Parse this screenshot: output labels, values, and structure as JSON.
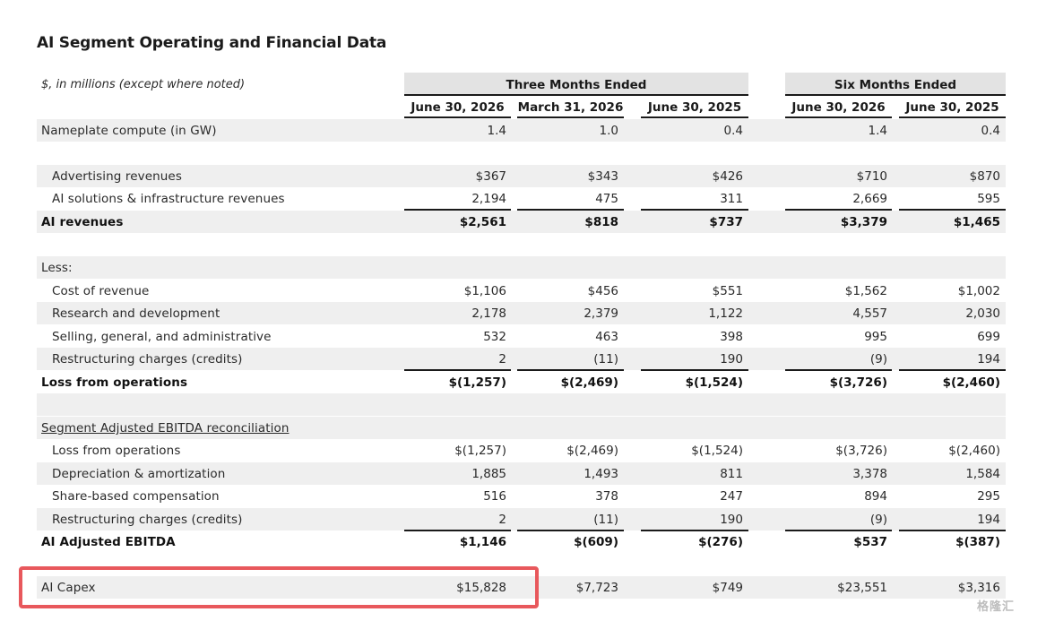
{
  "title": "AI Segment Operating and Financial Data",
  "units_note": "$, in millions (except where noted)",
  "header_groups": [
    "Three Months Ended",
    "Six Months Ended"
  ],
  "columns": [
    "June 30, 2026",
    "March 31, 2026",
    "June 30, 2025",
    "June 30, 2026",
    "June 30, 2025"
  ],
  "rows": [
    {
      "label": "Nameplate compute (in GW)",
      "values": [
        "1.4",
        "1.0",
        "0.4",
        "1.4",
        "0.4"
      ],
      "bold": false,
      "indent": false
    },
    {
      "label": "Advertising revenues",
      "values": [
        "$367",
        "$343",
        "$426",
        "$710",
        "$870"
      ],
      "bold": false,
      "indent": true
    },
    {
      "label": "AI solutions & infrastructure revenues",
      "values": [
        "2,194",
        "475",
        "311",
        "2,669",
        "595"
      ],
      "bold": false,
      "indent": true
    },
    {
      "label": "AI revenues",
      "values": [
        "$2,561",
        "$818",
        "$737",
        "$3,379",
        "$1,465"
      ],
      "bold": true,
      "indent": false
    },
    {
      "label": "Less:",
      "values": [
        "",
        "",
        "",
        "",
        ""
      ],
      "bold": false,
      "indent": false
    },
    {
      "label": "Cost of revenue",
      "values": [
        "$1,106",
        "$456",
        "$551",
        "$1,562",
        "$1,002"
      ],
      "bold": false,
      "indent": true
    },
    {
      "label": "Research and development",
      "values": [
        "2,178",
        "2,379",
        "1,122",
        "4,557",
        "2,030"
      ],
      "bold": false,
      "indent": true
    },
    {
      "label": "Selling, general, and administrative",
      "values": [
        "532",
        "463",
        "398",
        "995",
        "699"
      ],
      "bold": false,
      "indent": true
    },
    {
      "label": "Restructuring charges (credits)",
      "values": [
        "2",
        "(11)",
        "190",
        "(9)",
        "194"
      ],
      "bold": false,
      "indent": true
    },
    {
      "label": "Loss from operations",
      "values": [
        "$(1,257)",
        "$(2,469)",
        "$(1,524)",
        "$(3,726)",
        "$(2,460)"
      ],
      "bold": true,
      "indent": false
    },
    {
      "label": "Segment Adjusted EBITDA reconciliation",
      "values": [
        "",
        "",
        "",
        "",
        ""
      ],
      "bold": false,
      "indent": false,
      "underline": true
    },
    {
      "label": "Loss from operations",
      "values": [
        "$(1,257)",
        "$(2,469)",
        "$(1,524)",
        "$(3,726)",
        "$(2,460)"
      ],
      "bold": false,
      "indent": true
    },
    {
      "label": "Depreciation & amortization",
      "values": [
        "1,885",
        "1,493",
        "811",
        "3,378",
        "1,584"
      ],
      "bold": false,
      "indent": true
    },
    {
      "label": "Share-based compensation",
      "values": [
        "516",
        "378",
        "247",
        "894",
        "295"
      ],
      "bold": false,
      "indent": true
    },
    {
      "label": "Restructuring charges (credits)",
      "values": [
        "2",
        "(11)",
        "190",
        "(9)",
        "194"
      ],
      "bold": false,
      "indent": true
    },
    {
      "label": "AI Adjusted EBITDA",
      "values": [
        "$1,146",
        "$(609)",
        "$(276)",
        "$537",
        "$(387)"
      ],
      "bold": true,
      "indent": false
    },
    {
      "label": "AI Capex",
      "values": [
        "$15,828",
        "$7,723",
        "$749",
        "$23,551",
        "$3,316"
      ],
      "bold": false,
      "indent": false
    }
  ],
  "highlighted_row": "AI Capex",
  "watermark": "格隆汇",
  "colors": {
    "band": "#efefef",
    "header_band": "#e3e3e3",
    "highlight_border": "#e8585c",
    "rule": "#1a1a1a"
  }
}
